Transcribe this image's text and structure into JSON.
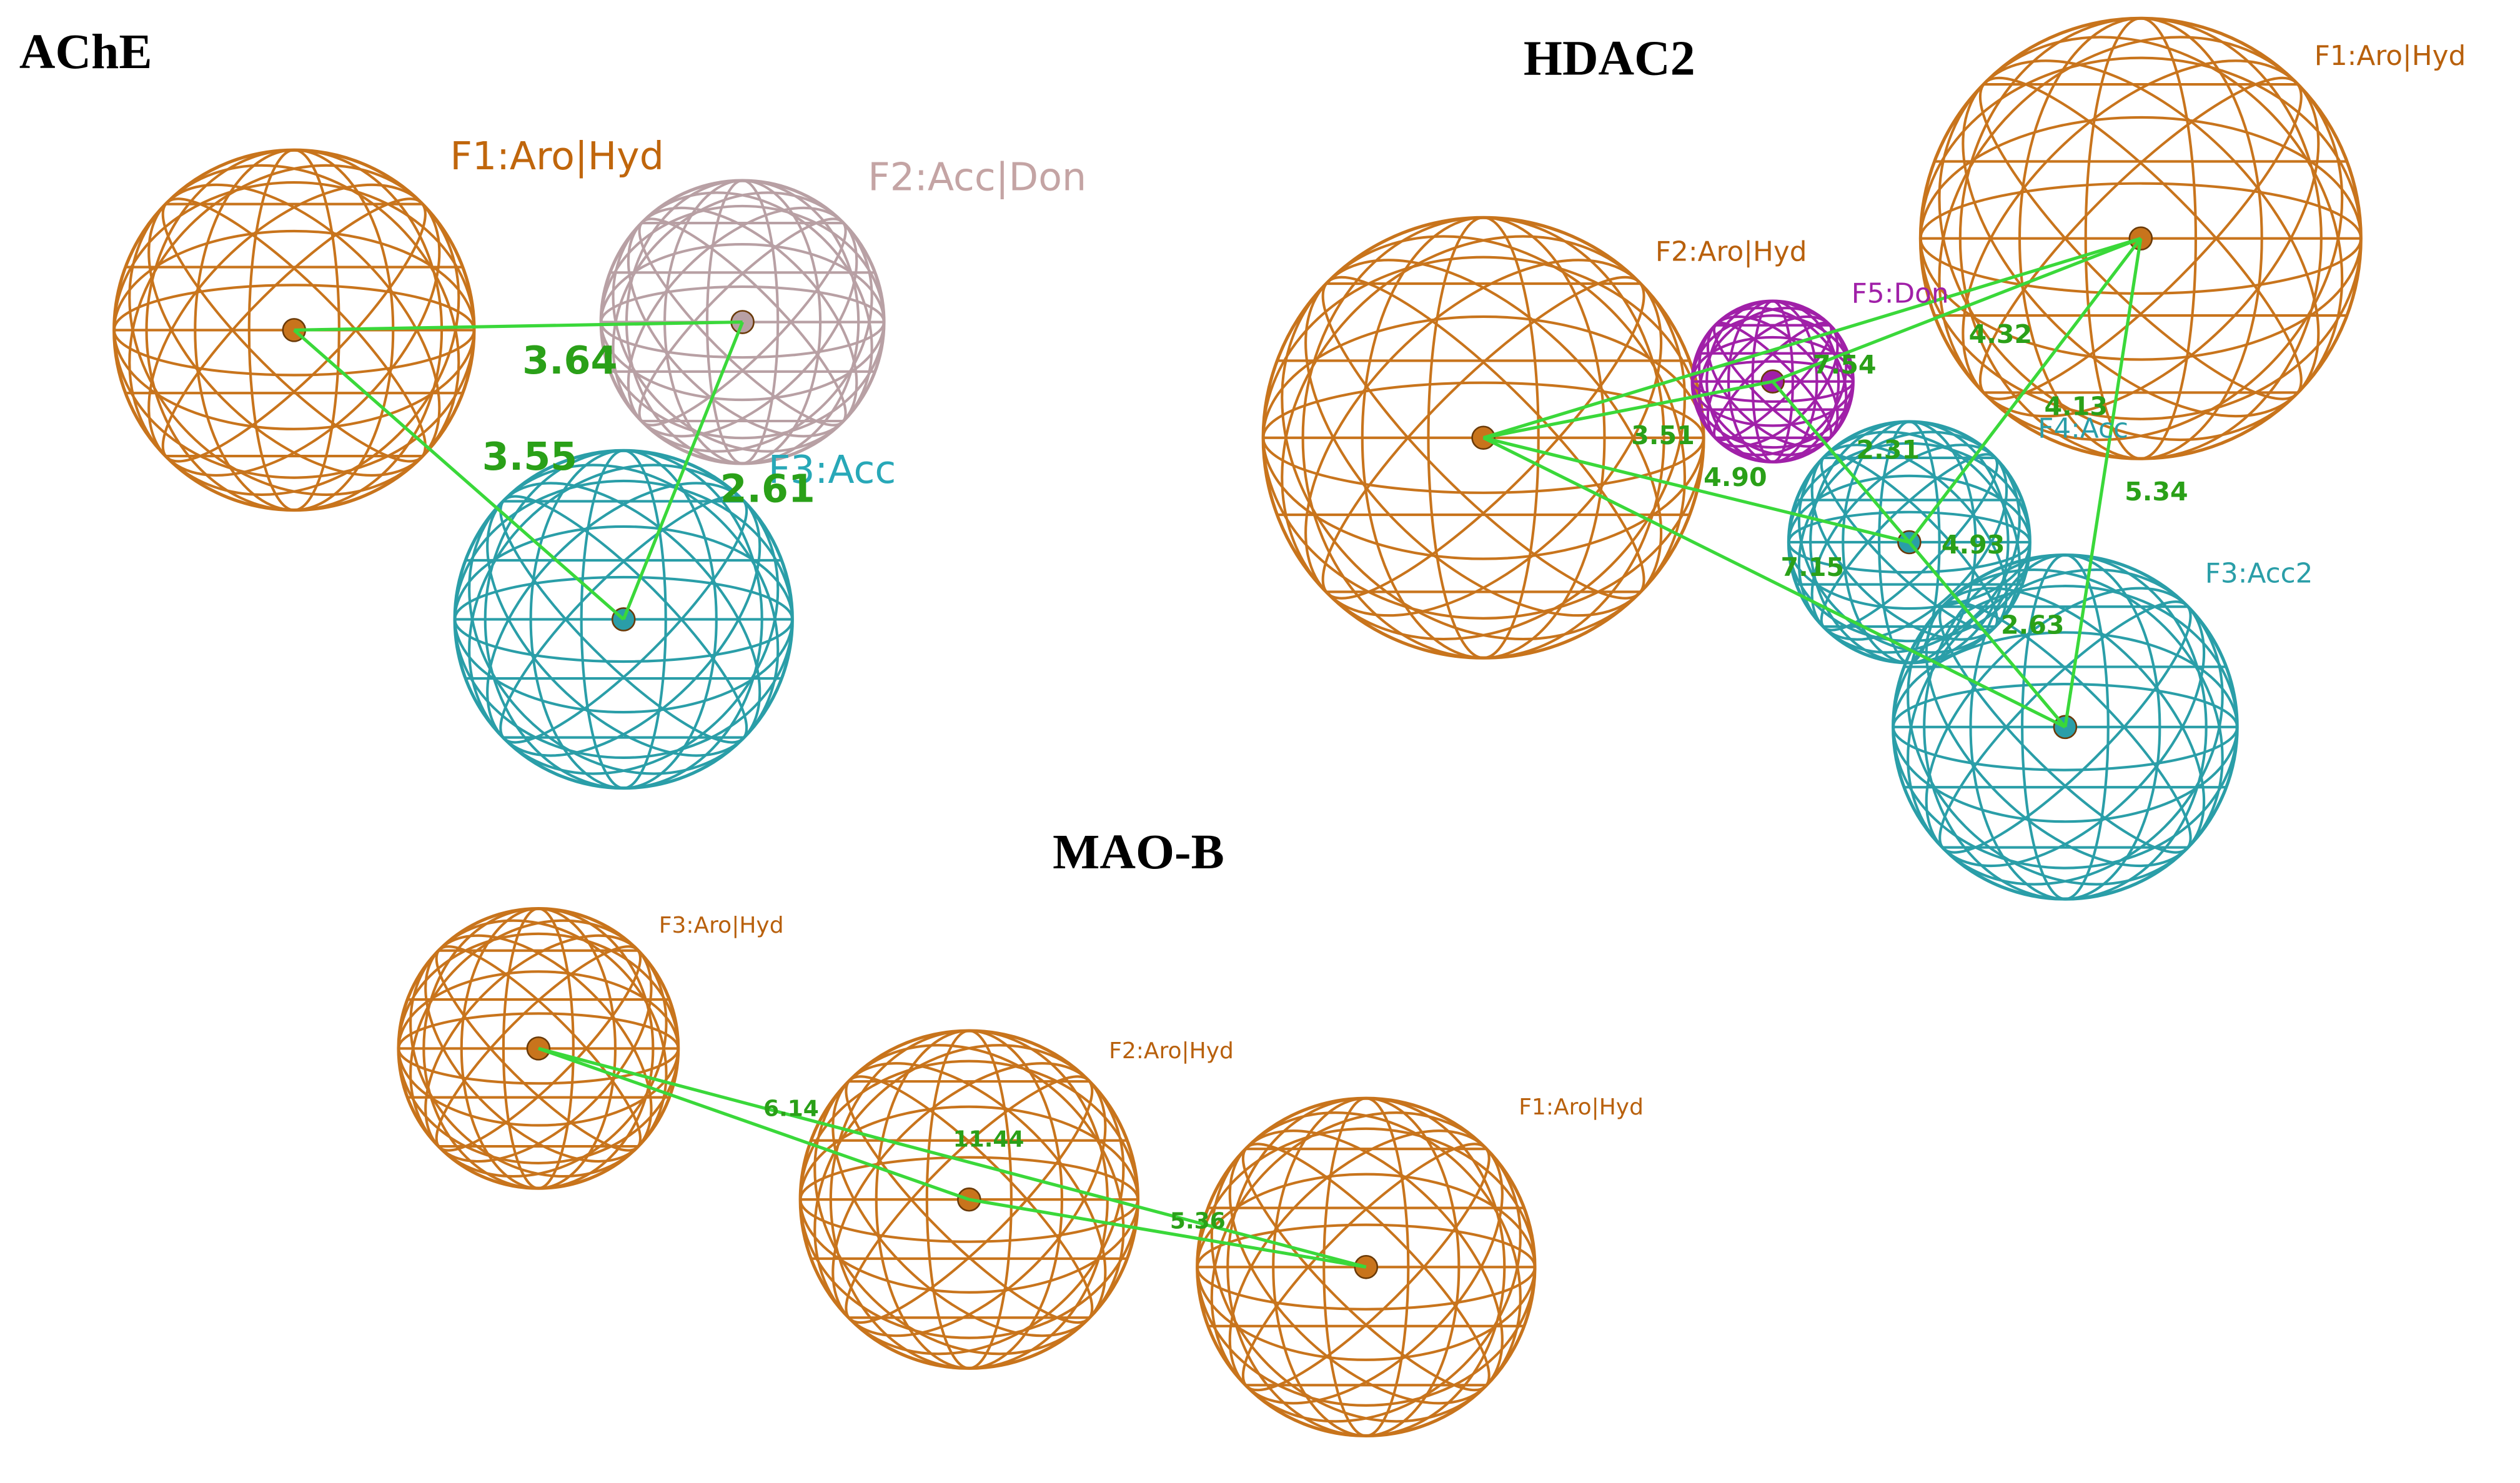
{
  "panels": [
    {
      "title": "AChE",
      "features": [
        "F1:Aro|Hyd",
        "F2:Acc|Don",
        "F3:Acc"
      ],
      "distances": [
        "3.64",
        "3.55",
        "2.61"
      ]
    },
    {
      "title": "HDAC2",
      "features": [
        "F1:Aro|Hyd",
        "F2:Aro|Hyd",
        "F5:Don",
        "F4:Acc",
        "F3:Acc2"
      ],
      "distances": [
        "7.54",
        "4.32",
        "3.51",
        "4.90",
        "4.13",
        "2.31",
        "5.34",
        "7.15",
        "4.93",
        "2.63"
      ]
    },
    {
      "title": "MAO-B",
      "features": [
        "F3:Aro|Hyd",
        "F2:Aro|Hyd",
        "F1:Aro|Hyd"
      ],
      "distances": [
        "6.14",
        "11.44",
        "5.36"
      ]
    }
  ]
}
